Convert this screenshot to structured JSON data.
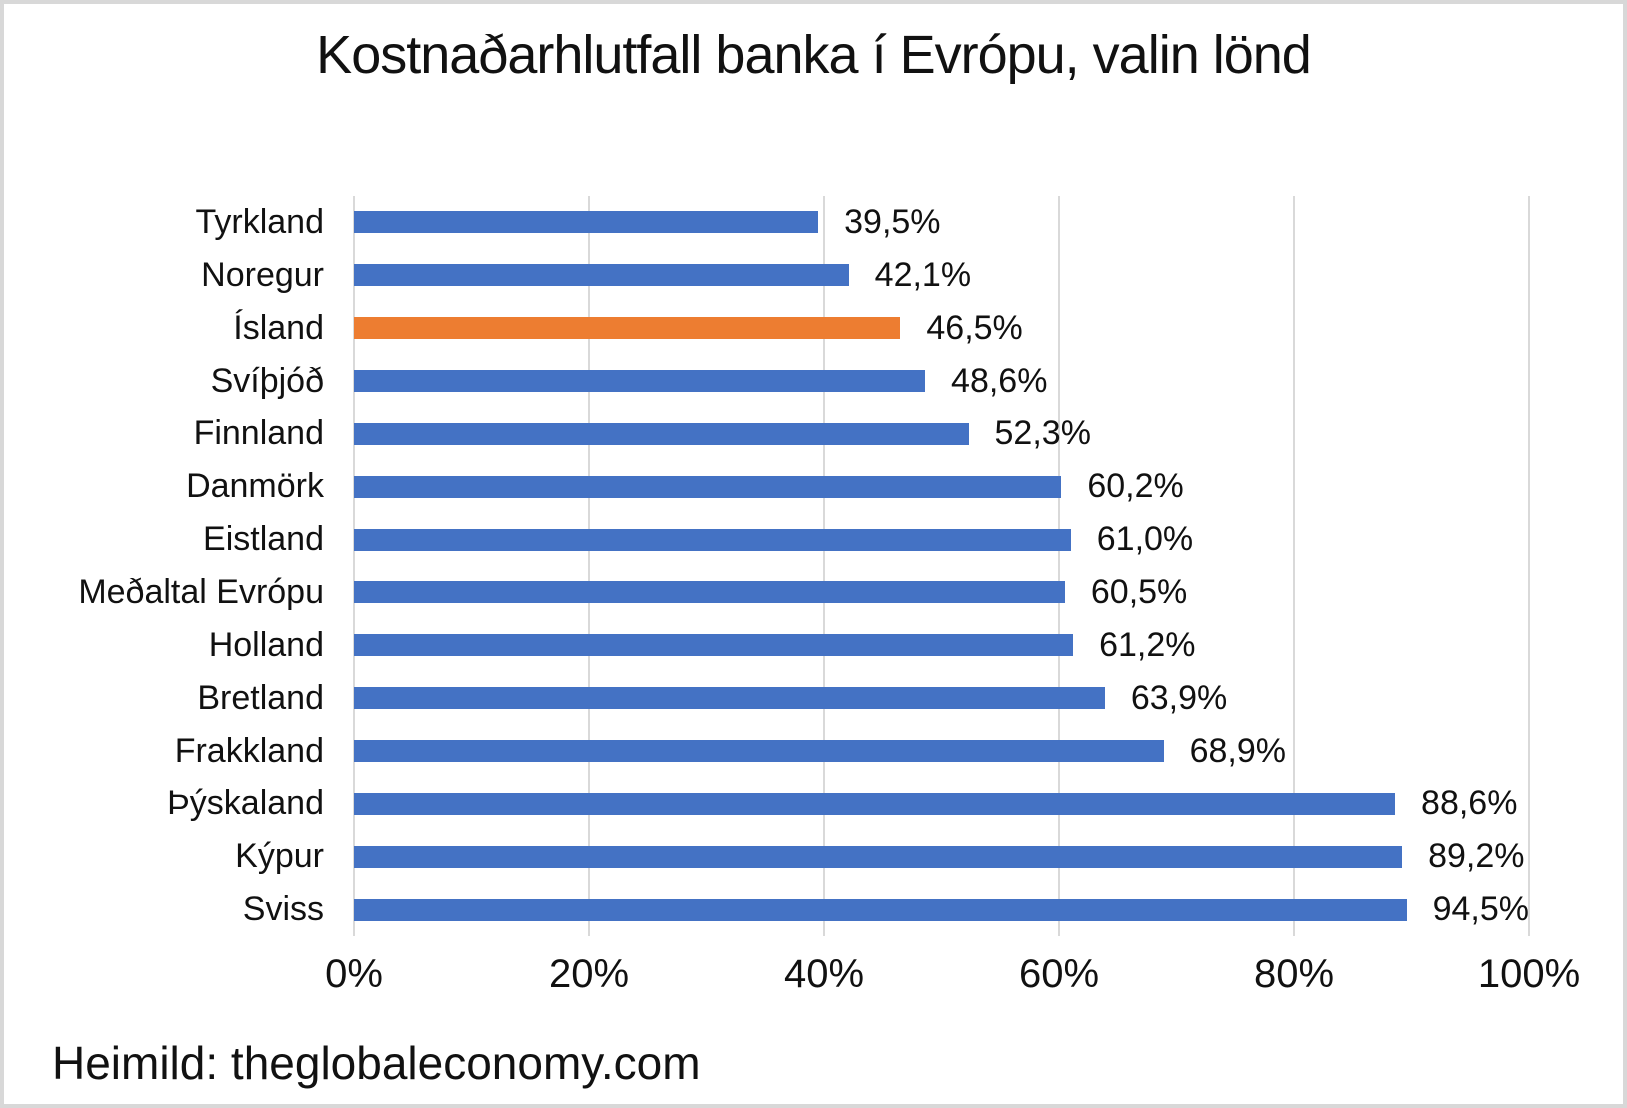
{
  "title": "Kostnaðarhlutfall banka í Evrópu, valin lönd",
  "source": "Heimild: theglobaleconomy.com",
  "chart_data": {
    "type": "bar",
    "orientation": "horizontal",
    "title": "Kostnaðarhlutfall banka í Evrópu, valin lönd",
    "categories": [
      "Tyrkland",
      "Noregur",
      "Ísland",
      "Svíþjóð",
      "Finnland",
      "Danmörk",
      "Eistland",
      "Meðaltal Evrópu",
      "Holland",
      "Bretland",
      "Frakkland",
      "Þýskaland",
      "Kýpur",
      "Sviss"
    ],
    "values": [
      39.5,
      42.1,
      46.5,
      48.6,
      52.3,
      60.2,
      61.0,
      60.5,
      61.2,
      63.9,
      68.9,
      88.6,
      89.2,
      94.5
    ],
    "value_labels": [
      "39,5%",
      "42,1%",
      "46,5%",
      "48,6%",
      "52,3%",
      "60,2%",
      "61,0%",
      "60,5%",
      "61,2%",
      "63,9%",
      "68,9%",
      "88,6%",
      "89,2%",
      "94,5%"
    ],
    "highlight_index": 2,
    "highlight_category": "Ísland",
    "bar_color": "#4472C4",
    "highlight_color": "#ED7D31",
    "xlim": [
      0,
      100
    ],
    "x_ticks": [
      "0%",
      "20%",
      "40%",
      "60%",
      "80%",
      "100%"
    ],
    "x_tick_values": [
      0,
      20,
      40,
      60,
      80,
      100
    ],
    "grid": true,
    "gridline_color": "#D9D9D9",
    "legend": "none",
    "ylabel": "",
    "xlabel": ""
  }
}
